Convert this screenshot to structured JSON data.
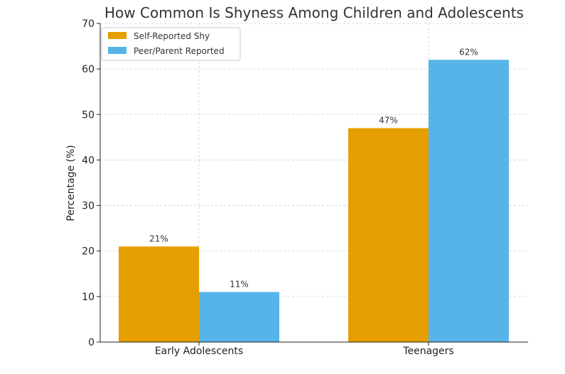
{
  "chart_data": {
    "type": "bar",
    "title": "How Common Is Shyness Among Children and Adolescents",
    "xlabel": "",
    "ylabel": "Percentage (%)",
    "categories": [
      "Early Adolescents",
      "Teenagers"
    ],
    "series": [
      {
        "name": "Self-Reported Shy",
        "values": [
          21,
          47
        ],
        "labels": [
          "21%",
          "47%"
        ],
        "color": "#E69F00"
      },
      {
        "name": "Peer/Parent Reported",
        "values": [
          11,
          62
        ],
        "labels": [
          "11%",
          "62%"
        ],
        "color": "#56B4E9"
      }
    ],
    "ylim": [
      0,
      70
    ],
    "yticks": [
      0,
      10,
      20,
      30,
      40,
      50,
      60,
      70
    ],
    "grid": true,
    "legend_position": "top-left"
  }
}
